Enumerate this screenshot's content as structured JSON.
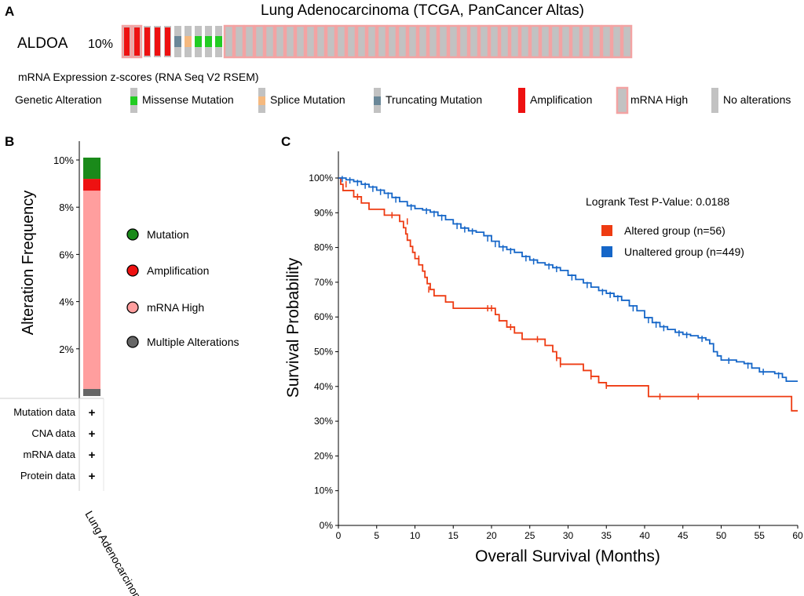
{
  "panels": {
    "a": "A",
    "b": "B",
    "c": "C"
  },
  "oncoprint": {
    "title": "Lung Adenocarcinoma (TCGA, PanCancer Altas)",
    "gene": "ALDOA",
    "percent": "10%",
    "subtitle": "mRNA Expression z-scores (RNA Seq V2 RSEM)",
    "samples": [
      "amp_mrna",
      "amp_mrna",
      "amp",
      "amp",
      "amp",
      "trunc",
      "splice",
      "missense",
      "missense",
      "missense",
      "mrna",
      "mrna",
      "mrna",
      "mrna",
      "mrna",
      "mrna",
      "mrna",
      "mrna",
      "mrna",
      "mrna",
      "mrna",
      "mrna",
      "mrna",
      "mrna",
      "mrna",
      "mrna",
      "mrna",
      "mrna",
      "mrna",
      "mrna",
      "mrna",
      "mrna",
      "mrna",
      "mrna",
      "mrna",
      "mrna",
      "mrna",
      "mrna",
      "mrna",
      "mrna",
      "mrna",
      "mrna",
      "mrna",
      "mrna",
      "mrna",
      "mrna",
      "mrna",
      "mrna",
      "mrna",
      "mrna"
    ],
    "legend_title": "Genetic Alteration",
    "legend": [
      {
        "key": "missense",
        "label": "Missense Mutation"
      },
      {
        "key": "splice",
        "label": "Splice Mutation"
      },
      {
        "key": "trunc",
        "label": "Truncating Mutation"
      },
      {
        "key": "amp",
        "label": "Amplification"
      },
      {
        "key": "mrna",
        "label": "mRNA High"
      },
      {
        "key": "none",
        "label": "No alterations"
      }
    ],
    "colors": {
      "missense": "#22cc22",
      "splice": "#f5b97f",
      "trunc": "#6a8798",
      "amp": "#ee1111",
      "mrna_border": "#f3a3a3",
      "gray": "#c2c2c2"
    }
  },
  "chart_data": [
    {
      "type": "bar",
      "panel": "B",
      "ylabel": "Alteration Frequency",
      "yticks": [
        "2%",
        "4%",
        "6%",
        "8%",
        "10%"
      ],
      "ylim": [
        0,
        10.5
      ],
      "category": "Lung Adenocarcinoma",
      "series": [
        {
          "name": "Multiple Alterations",
          "value": 0.3,
          "color": "#666666"
        },
        {
          "name": "mRNA High",
          "value": 8.4,
          "color": "#ff9e9e"
        },
        {
          "name": "Amplification",
          "value": 0.5,
          "color": "#ee1111"
        },
        {
          "name": "Mutation",
          "value": 0.9,
          "color": "#1a8a1a"
        }
      ],
      "legend": [
        "Mutation",
        "Amplification",
        "mRNA High",
        "Multiple Alterations"
      ],
      "data_rows": [
        {
          "label": "Mutation data",
          "mark": "+"
        },
        {
          "label": "CNA data",
          "mark": "+"
        },
        {
          "label": "mRNA data",
          "mark": "+"
        },
        {
          "label": "Protein data",
          "mark": "+"
        }
      ]
    },
    {
      "type": "line",
      "panel": "C",
      "xlabel": "Overall Survival (Months)",
      "ylabel": "Survival Probability",
      "xlim": [
        0,
        60
      ],
      "ylim": [
        0,
        105
      ],
      "xticks": [
        0,
        5,
        10,
        15,
        20,
        25,
        30,
        35,
        40,
        45,
        50,
        55,
        60
      ],
      "yticks": [
        "0%",
        "10%",
        "20%",
        "30%",
        "40%",
        "50%",
        "60%",
        "70%",
        "80%",
        "90%",
        "100%"
      ],
      "annotation": "Logrank Test P-Value: 0.0188",
      "series": [
        {
          "name": "Altered group (n=56)",
          "color": "#ee3b12",
          "points": [
            [
              0,
              100
            ],
            [
              0.3,
              98.2
            ],
            [
              0.6,
              96.4
            ],
            [
              2,
              94.6
            ],
            [
              3,
              92.8
            ],
            [
              4,
              91
            ],
            [
              6,
              89.3
            ],
            [
              8,
              87.5
            ],
            [
              8.5,
              85.7
            ],
            [
              8.8,
              83.9
            ],
            [
              9,
              82.1
            ],
            [
              9.4,
              80.3
            ],
            [
              9.7,
              78.6
            ],
            [
              10,
              76.8
            ],
            [
              10.5,
              75
            ],
            [
              11,
              73.2
            ],
            [
              11.3,
              71.4
            ],
            [
              11.6,
              69.6
            ],
            [
              12,
              67.9
            ],
            [
              12.5,
              66.1
            ],
            [
              14,
              64.3
            ],
            [
              15,
              62.5
            ],
            [
              20.5,
              60.7
            ],
            [
              21,
              58.9
            ],
            [
              22,
              57.1
            ],
            [
              23,
              55.4
            ],
            [
              24,
              53.6
            ],
            [
              27,
              51.8
            ],
            [
              28,
              50
            ],
            [
              28.5,
              48.2
            ],
            [
              29,
              46.4
            ],
            [
              32,
              44.6
            ],
            [
              33,
              42.9
            ],
            [
              34,
              41.1
            ],
            [
              35,
              40.2
            ],
            [
              40.5,
              37.1
            ],
            [
              59,
              37.1
            ],
            [
              59.2,
              33
            ],
            [
              60,
              33
            ]
          ],
          "censor": [
            [
              1,
              98.2
            ],
            [
              2.5,
              94.6
            ],
            [
              7,
              89.3
            ],
            [
              9,
              87.5
            ],
            [
              10.5,
              76.8
            ],
            [
              11.8,
              67.9
            ],
            [
              19.5,
              62.5
            ],
            [
              20,
              62.5
            ],
            [
              22.5,
              57.1
            ],
            [
              26,
              53.6
            ],
            [
              28.5,
              48.2
            ],
            [
              29,
              46.4
            ],
            [
              33,
              42.9
            ],
            [
              35,
              40.2
            ],
            [
              42,
              37.1
            ],
            [
              47,
              37.1
            ]
          ]
        },
        {
          "name": "Unaltered group (n=449)",
          "color": "#1566c8",
          "points": [
            [
              0,
              100
            ],
            [
              1,
              99.5
            ],
            [
              2,
              99
            ],
            [
              3,
              98.2
            ],
            [
              4,
              97.4
            ],
            [
              5,
              96.5
            ],
            [
              6,
              95.6
            ],
            [
              7,
              94.4
            ],
            [
              8,
              93.2
            ],
            [
              9,
              92
            ],
            [
              10,
              91.2
            ],
            [
              11,
              90.8
            ],
            [
              12,
              90.2
            ],
            [
              13,
              89.2
            ],
            [
              14,
              88
            ],
            [
              15,
              86.8
            ],
            [
              16,
              85.6
            ],
            [
              17,
              84.8
            ],
            [
              18,
              84.4
            ],
            [
              19,
              83.4
            ],
            [
              20,
              81.8
            ],
            [
              21,
              80.2
            ],
            [
              22,
              79.4
            ],
            [
              23,
              78.6
            ],
            [
              24,
              77.4
            ],
            [
              25,
              76.4
            ],
            [
              26,
              75.6
            ],
            [
              27,
              75
            ],
            [
              28,
              74.2
            ],
            [
              29,
              73.4
            ],
            [
              30,
              72
            ],
            [
              31,
              70.8
            ],
            [
              32,
              69.8
            ],
            [
              33,
              68.6
            ],
            [
              34,
              67.6
            ],
            [
              35,
              66.8
            ],
            [
              36,
              65.9
            ],
            [
              37,
              64.8
            ],
            [
              38,
              63.2
            ],
            [
              39,
              61.8
            ],
            [
              40,
              59.8
            ],
            [
              41,
              58.4
            ],
            [
              42,
              57.2
            ],
            [
              43,
              56.4
            ],
            [
              44,
              55.6
            ],
            [
              45,
              55
            ],
            [
              46,
              54.6
            ],
            [
              47,
              54
            ],
            [
              48,
              53.4
            ],
            [
              48.5,
              52.3
            ],
            [
              49,
              50
            ],
            [
              49.5,
              48.8
            ],
            [
              50,
              47.6
            ],
            [
              52,
              47.1
            ],
            [
              53,
              46.6
            ],
            [
              54,
              45.3
            ],
            [
              55,
              44.2
            ],
            [
              56,
              44.2
            ],
            [
              57,
              43.7
            ],
            [
              58,
              42.6
            ],
            [
              58.5,
              41.5
            ],
            [
              60,
              41.5
            ]
          ],
          "censor": [
            [
              0.5,
              99.7
            ],
            [
              1.5,
              99.3
            ],
            [
              2.5,
              98.6
            ],
            [
              3.5,
              97.8
            ],
            [
              4.5,
              96.9
            ],
            [
              5.5,
              96
            ],
            [
              6.5,
              95
            ],
            [
              7.5,
              93.8
            ],
            [
              9.5,
              91.6
            ],
            [
              11.5,
              90.5
            ],
            [
              12.5,
              89.7
            ],
            [
              13.5,
              88.6
            ],
            [
              15.5,
              86.2
            ],
            [
              16.5,
              85.2
            ],
            [
              17.5,
              84.6
            ],
            [
              19.5,
              82.6
            ],
            [
              20.5,
              81
            ],
            [
              21.5,
              79.8
            ],
            [
              22.5,
              79
            ],
            [
              24.5,
              76.9
            ],
            [
              25.5,
              76
            ],
            [
              27.5,
              74.6
            ],
            [
              28.5,
              73.8
            ],
            [
              30.5,
              71.4
            ],
            [
              32.5,
              69.2
            ],
            [
              34.5,
              67.2
            ],
            [
              35.5,
              66.4
            ],
            [
              36.5,
              65.4
            ],
            [
              38.5,
              62.5
            ],
            [
              40.5,
              59.1
            ],
            [
              41.5,
              57.8
            ],
            [
              42.5,
              56.8
            ],
            [
              44.5,
              55.3
            ],
            [
              45.5,
              54.8
            ],
            [
              47.5,
              53.7
            ],
            [
              51,
              47.4
            ],
            [
              53.5,
              46
            ],
            [
              55.5,
              44.2
            ],
            [
              57.5,
              43.2
            ]
          ]
        }
      ]
    }
  ]
}
